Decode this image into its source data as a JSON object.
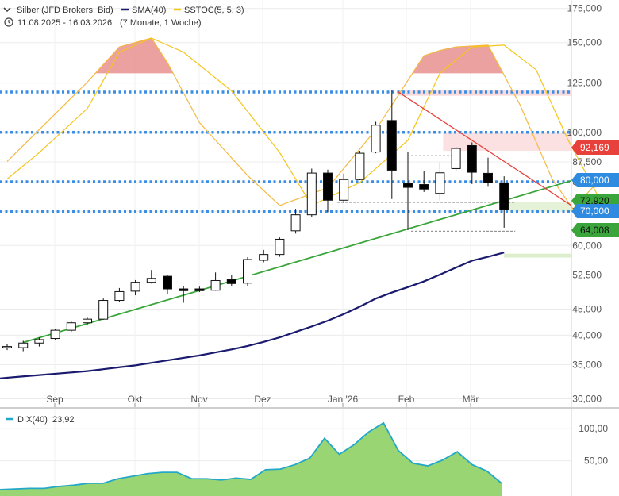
{
  "legend": {
    "instrument": "Silber (JFD Brokers, Bid)",
    "sma": "SMA(40)",
    "sstoc": "SSTOC(5, 5, 3)",
    "date_range": "11.08.2025 - 16.03.2026",
    "period": "(7 Monate, 1 Woche)",
    "dix_label": "DIX(40)",
    "dix_value": "23,92"
  },
  "colors": {
    "candle_up_fill": "#ffffff",
    "candle_down_fill": "#000000",
    "sma": "#1a1a6e",
    "sstoc": "#f5c518",
    "sstoc_zone": "#e8908f",
    "support_dotted": "#3a8ee6",
    "trend_up": "#3aa53a",
    "trend_down": "#e8403a",
    "dix_fill": "#93d36a",
    "dix_line": "#23a8c8",
    "tag_red": "#e8403a",
    "tag_blue": "#2f8be0",
    "tag_green": "#3aa53a"
  },
  "chart_data": {
    "type": "candlestick",
    "x_labels": [
      "Sep",
      "Okt",
      "Nov",
      "Dez",
      "Jan '26",
      "Feb",
      "Mär"
    ],
    "y_ticks": [
      "175,000",
      "150,000",
      "125,000",
      "100,000",
      "87,500",
      "80,000",
      "70,000",
      "60,000",
      "52,500",
      "45,000",
      "40,000",
      "35,000",
      "30,000"
    ],
    "y_tick_values": [
      175,
      150,
      125,
      100,
      87.5,
      80,
      70,
      60,
      52.5,
      45,
      40,
      35,
      30
    ],
    "y_scale": "log",
    "ylim": [
      29,
      178
    ],
    "candles": [
      {
        "o": 37.9,
        "h": 38.4,
        "l": 37.4,
        "c": 38.0
      },
      {
        "o": 37.8,
        "h": 39.0,
        "l": 37.2,
        "c": 38.6
      },
      {
        "o": 38.6,
        "h": 39.6,
        "l": 38.0,
        "c": 39.2
      },
      {
        "o": 39.4,
        "h": 41.2,
        "l": 39.1,
        "c": 40.9
      },
      {
        "o": 40.9,
        "h": 42.7,
        "l": 40.6,
        "c": 42.3
      },
      {
        "o": 42.3,
        "h": 43.3,
        "l": 41.9,
        "c": 43.0
      },
      {
        "o": 43.0,
        "h": 47.2,
        "l": 42.9,
        "c": 46.8
      },
      {
        "o": 46.8,
        "h": 49.5,
        "l": 46.4,
        "c": 48.7
      },
      {
        "o": 48.8,
        "h": 51.3,
        "l": 47.9,
        "c": 50.8
      },
      {
        "o": 50.8,
        "h": 53.7,
        "l": 50.5,
        "c": 51.7
      },
      {
        "o": 52.2,
        "h": 52.6,
        "l": 48.2,
        "c": 49.3
      },
      {
        "o": 49.3,
        "h": 49.9,
        "l": 46.3,
        "c": 48.9
      },
      {
        "o": 49.3,
        "h": 49.8,
        "l": 48.6,
        "c": 48.9
      },
      {
        "o": 49.0,
        "h": 53.1,
        "l": 48.9,
        "c": 51.2
      },
      {
        "o": 51.4,
        "h": 52.5,
        "l": 50.0,
        "c": 50.5
      },
      {
        "o": 50.6,
        "h": 56.9,
        "l": 49.9,
        "c": 56.3
      },
      {
        "o": 56.1,
        "h": 58.8,
        "l": 55.6,
        "c": 57.6
      },
      {
        "o": 57.6,
        "h": 62.2,
        "l": 57.0,
        "c": 61.7
      },
      {
        "o": 64.1,
        "h": 70.8,
        "l": 63.3,
        "c": 68.9
      },
      {
        "o": 68.9,
        "h": 84.9,
        "l": 68.1,
        "c": 83.2
      },
      {
        "o": 83.2,
        "h": 84.5,
        "l": 69.7,
        "c": 73.6
      },
      {
        "o": 73.6,
        "h": 83.0,
        "l": 72.7,
        "c": 80.8
      },
      {
        "o": 80.8,
        "h": 92.0,
        "l": 80.6,
        "c": 91.0
      },
      {
        "o": 91.5,
        "h": 104.9,
        "l": 91.0,
        "c": 103.3
      },
      {
        "o": 105.5,
        "h": 121.3,
        "l": 74.0,
        "c": 84.3
      },
      {
        "o": 79.4,
        "h": 91.5,
        "l": 64.3,
        "c": 78.0
      },
      {
        "o": 79.0,
        "h": 84.0,
        "l": 76.4,
        "c": 77.4
      },
      {
        "o": 75.9,
        "h": 87.4,
        "l": 73.5,
        "c": 83.3
      },
      {
        "o": 84.9,
        "h": 93.7,
        "l": 84.1,
        "c": 93.0
      },
      {
        "o": 94.2,
        "h": 95.6,
        "l": 79.2,
        "c": 83.5
      },
      {
        "o": 83.1,
        "h": 89.2,
        "l": 78.2,
        "c": 79.6
      },
      {
        "o": 79.6,
        "h": 82.0,
        "l": 65.0,
        "c": 70.6
      }
    ],
    "sma_40": [
      33.0,
      33.2,
      33.4,
      33.6,
      33.8,
      34.0,
      34.3,
      34.6,
      34.9,
      35.3,
      35.7,
      36.1,
      36.5,
      37.0,
      37.5,
      38.1,
      38.8,
      39.6,
      40.6,
      41.6,
      42.7,
      44.0,
      45.5,
      47.2,
      48.5,
      49.7,
      51.0,
      52.6,
      54.3,
      56.0,
      57.0,
      58.1
    ],
    "sstoc": {
      "ylim": [
        0,
        100
      ],
      "k": [
        30,
        48,
        75,
        95,
        100,
        86,
        52,
        22,
        5,
        15,
        48,
        90,
        93,
        95,
        96,
        62,
        20,
        3,
        15,
        22
      ],
      "k_x": [
        0,
        2,
        5,
        7,
        9,
        10,
        12,
        15,
        17,
        20,
        23,
        26,
        27,
        28,
        30,
        32,
        34,
        35.3,
        36.5,
        39.5
      ],
      "d": [
        20,
        35,
        60,
        92,
        100,
        92,
        70,
        35,
        5,
        18,
        42,
        80,
        95,
        96,
        82,
        42,
        8,
        2,
        7
      ],
      "d_x": [
        0,
        2,
        5,
        7,
        9,
        11,
        14,
        17,
        19,
        22,
        25,
        27,
        29,
        31,
        33,
        35,
        37,
        38,
        39.5
      ]
    },
    "support_levels": [
      120,
      100,
      80,
      70
    ],
    "trend_up": {
      "from": [
        1,
        38.7
      ],
      "to": [
        35.2,
        77.0
      ]
    },
    "trend_down": {
      "from": [
        24.4,
        120
      ],
      "to": [
        35.2,
        72.9
      ]
    },
    "dashed_levels": [
      {
        "y": 72.9,
        "from": 20.6,
        "to": 31.0
      },
      {
        "y": 64.0,
        "from": 25.2,
        "to": 31.0
      },
      {
        "y": 90.0,
        "from": 25.2,
        "to": 27.5
      }
    ],
    "zones": [
      {
        "from": 24.4,
        "to": 35.2,
        "y_high": 121.0,
        "y_low": 118.0
      },
      {
        "from": 27.2,
        "to": 35.2,
        "y_high": 100.0,
        "y_low": 92.0
      },
      {
        "from": 31.0,
        "to": 35.2,
        "y_high": 73.0,
        "y_low": 70.0
      },
      {
        "from": 31.0,
        "to": 35.2,
        "y_high": 57.8,
        "y_low": 56.8
      }
    ],
    "price_tags": [
      {
        "label": "92,169",
        "value": 92.169,
        "color": "red"
      },
      {
        "label": "80,000",
        "value": 80.0,
        "color": "blue"
      },
      {
        "label": "72,920",
        "value": 72.92,
        "color": "green"
      },
      {
        "label": "70,000",
        "value": 70.0,
        "color": "blue"
      },
      {
        "label": "64,008",
        "value": 64.008,
        "color": "green"
      }
    ],
    "dix": {
      "y_ticks": [
        "100,00",
        "50,00"
      ],
      "y_tick_values": [
        100,
        50
      ],
      "ylim": [
        0,
        120
      ],
      "values": [
        5,
        6,
        7,
        7,
        10,
        12,
        15,
        15,
        22,
        26,
        30,
        32,
        32,
        22,
        22,
        20,
        23,
        21,
        36,
        37,
        44,
        54,
        85,
        60,
        75,
        95,
        109,
        66,
        46,
        42,
        51,
        64,
        44,
        34,
        15
      ]
    }
  }
}
